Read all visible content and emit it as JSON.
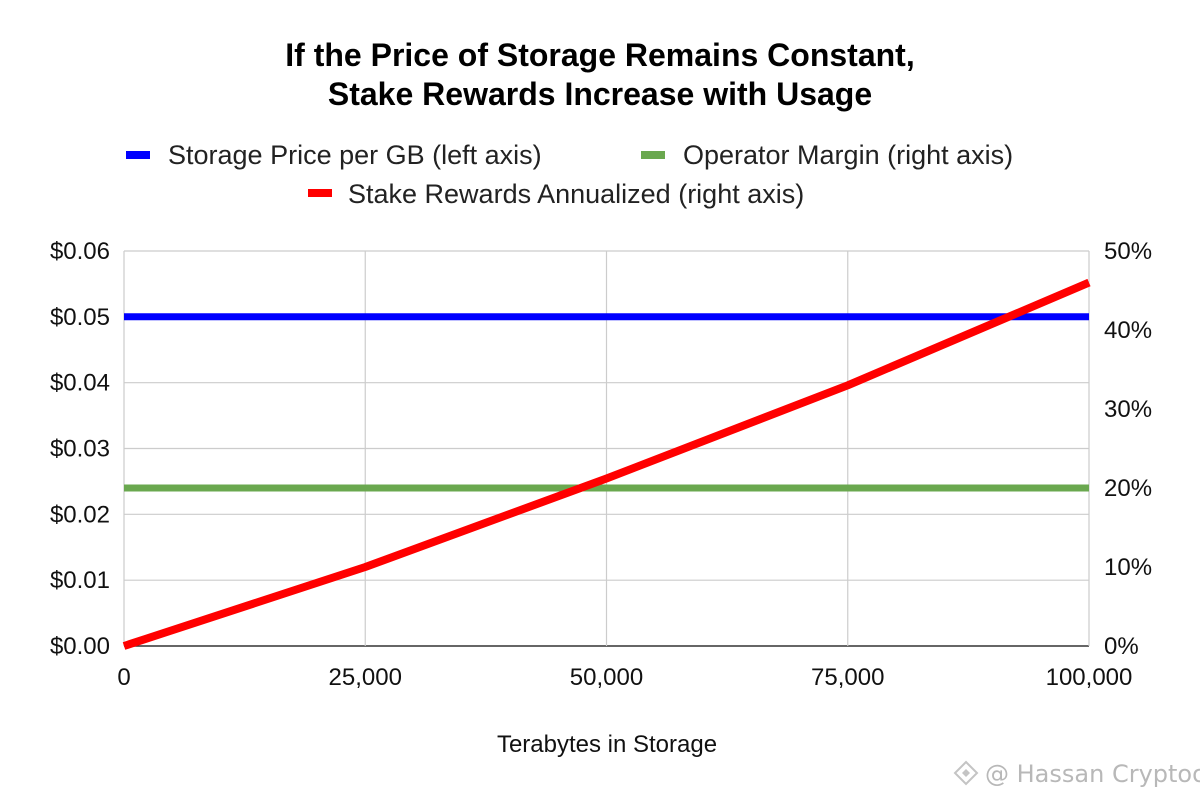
{
  "chart_data": {
    "type": "line",
    "title": [
      "If the Price of Storage Remains Constant,",
      "Stake Rewards Increase with Usage"
    ],
    "xlabel": "Terabytes in Storage",
    "x": [
      0,
      100000
    ],
    "xlim": [
      0,
      100000
    ],
    "x_ticks": [
      "0",
      "25,000",
      "50,000",
      "75,000",
      "100,000"
    ],
    "x_tick_values": [
      0,
      25000,
      50000,
      75000,
      100000
    ],
    "ylim_left": [
      0,
      0.06
    ],
    "y_left_ticks": [
      "$0.00",
      "$0.01",
      "$0.02",
      "$0.03",
      "$0.04",
      "$0.05",
      "$0.06"
    ],
    "y_left_tick_values": [
      0,
      0.01,
      0.02,
      0.03,
      0.04,
      0.05,
      0.06
    ],
    "ylim_right": [
      0,
      0.5
    ],
    "y_right_ticks": [
      "0%",
      "10%",
      "20%",
      "30%",
      "40%",
      "50%"
    ],
    "y_right_tick_values": [
      0,
      0.1,
      0.2,
      0.3,
      0.4,
      0.5
    ],
    "grid": true,
    "legend_position": "top",
    "series": [
      {
        "name": "Storage Price per GB (left axis)",
        "axis": "left",
        "color": "#0000ff",
        "x": [
          0,
          100000
        ],
        "values": [
          0.05,
          0.05
        ]
      },
      {
        "name": "Operator Margin (right axis)",
        "axis": "right",
        "color": "#6aa84f",
        "x": [
          0,
          100000
        ],
        "values": [
          0.2,
          0.2
        ]
      },
      {
        "name": "Stake Rewards Annualized (right axis)",
        "axis": "right",
        "color": "#ff0000",
        "x": [
          0,
          25000,
          50000,
          75000,
          100000
        ],
        "values": [
          0,
          0.1,
          0.212,
          0.33,
          0.46
        ]
      }
    ]
  },
  "watermark": {
    "text": "@ Hassan Cryptoo",
    "icon": "binance-diamond-icon"
  }
}
